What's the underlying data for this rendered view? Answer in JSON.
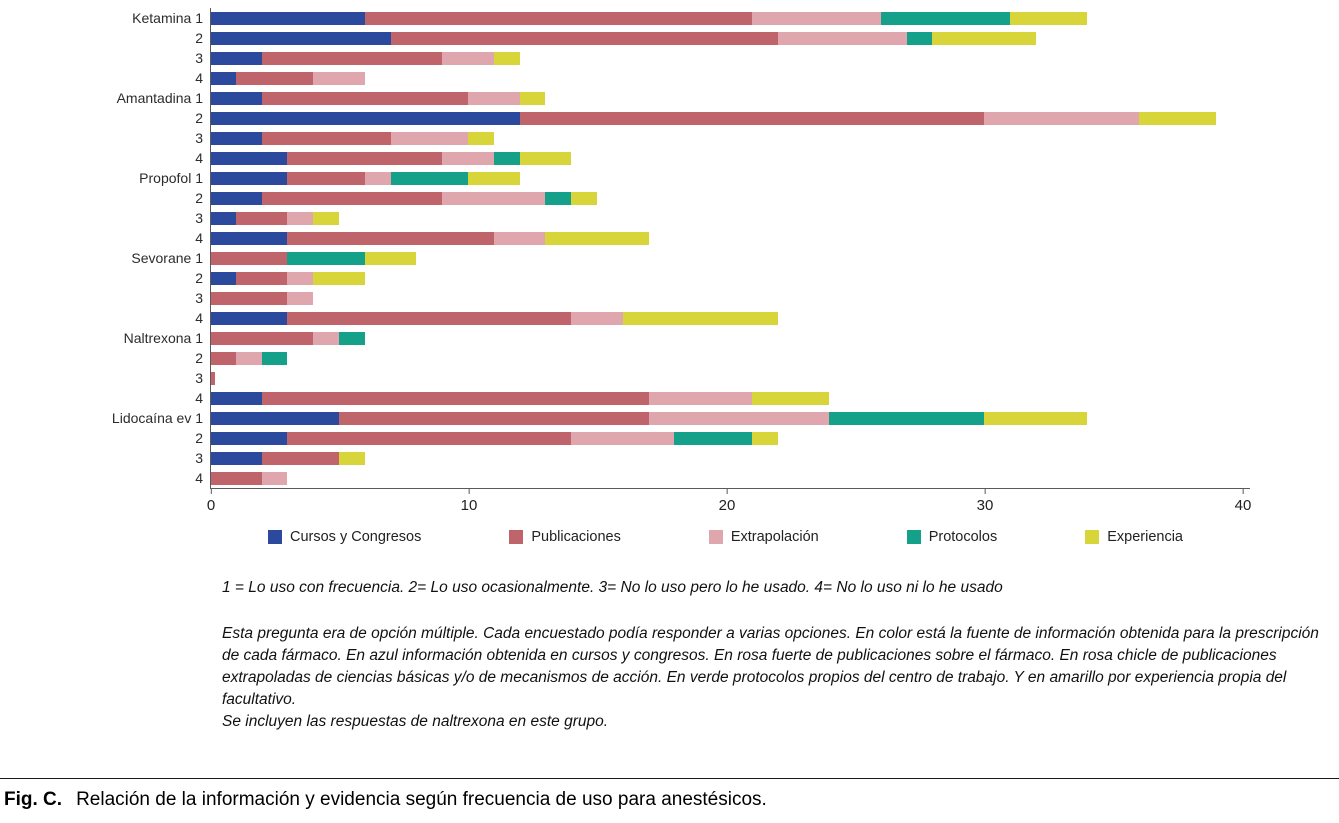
{
  "figure": {
    "caption_label": "Fig. C.",
    "caption_text": "Relación de la información y evidencia según frecuencia de uso para anestésicos."
  },
  "notes": {
    "scale_line": "1 = Lo uso con frecuencia. 2= Lo uso ocasionalmente. 3= No lo uso pero lo he usado. 4= No lo uso ni lo he usado",
    "paragraph": "Esta pregunta era de opción múltiple. Cada encuestado podía responder a varias opciones. En color está la fuente de información obtenida para la prescripción de cada fármaco. En azul información obtenida en cursos y congresos. En rosa fuerte de publicaciones sobre el fármaco. En rosa chicle de publicaciones extrapoladas de ciencias básicas y/o de mecanismos de acción. En verde protocolos propios del centro de trabajo. Y en amarillo por experiencia propia del facultativo.",
    "last_line": "Se incluyen las respuestas de naltrexona en este grupo."
  },
  "chart_data": {
    "type": "bar",
    "orientation": "horizontal",
    "stacked": true,
    "title": "",
    "xlabel": "",
    "ylabel": "",
    "xlim": [
      0,
      40
    ],
    "x_ticks": [
      0,
      10,
      20,
      30,
      40
    ],
    "grid": false,
    "legend_position": "bottom",
    "groups": [
      "Ketamina",
      "Amantadina",
      "Propofol",
      "Sevorane",
      "Naltrexona",
      "Lidocaína ev"
    ],
    "row_labels": [
      "Ketamina 1",
      "2",
      "3",
      "4",
      "Amantadina 1",
      "2",
      "3",
      "4",
      "Propofol 1",
      "2",
      "3",
      "4",
      "Sevorane 1",
      "2",
      "3",
      "4",
      "Naltrexona 1",
      "2",
      "3",
      "4",
      "Lidocaína ev 1",
      "2",
      "3",
      "4"
    ],
    "series": [
      {
        "name": "Cursos y Congresos",
        "color": "#2b4a9e",
        "values": [
          6,
          7,
          2,
          1,
          2,
          12,
          2,
          3,
          3,
          2,
          1,
          3,
          0,
          1,
          0,
          3,
          0,
          0,
          0,
          2,
          5,
          3,
          2,
          0
        ]
      },
      {
        "name": "Publicaciones",
        "color": "#c0646c",
        "values": [
          15,
          15,
          7,
          3,
          8,
          18,
          5,
          6,
          3,
          7,
          2,
          8,
          3,
          2,
          3,
          11,
          4,
          1,
          0.2,
          15,
          12,
          11,
          3,
          2
        ]
      },
      {
        "name": "Extrapolación",
        "color": "#dfa6ad",
        "values": [
          5,
          5,
          2,
          2,
          2,
          6,
          3,
          2,
          1,
          4,
          1,
          2,
          0,
          1,
          1,
          2,
          1,
          1,
          0,
          4,
          7,
          4,
          0,
          1
        ]
      },
      {
        "name": "Protocolos",
        "color": "#15a189",
        "values": [
          5,
          1,
          0,
          0,
          0,
          0,
          0,
          1,
          3,
          1,
          0,
          0,
          3,
          0,
          0,
          0,
          1,
          1,
          0,
          0,
          6,
          3,
          0,
          0
        ]
      },
      {
        "name": "Experiencia",
        "color": "#d8d53b",
        "values": [
          3,
          4,
          1,
          0,
          1,
          3,
          1,
          2,
          2,
          1,
          1,
          4,
          2,
          2,
          0,
          6,
          0,
          0,
          0,
          3,
          4,
          1,
          1,
          0
        ]
      }
    ]
  }
}
